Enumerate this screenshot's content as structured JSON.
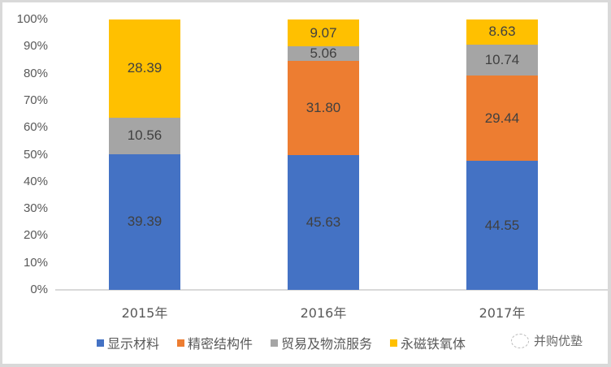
{
  "chart_data": {
    "type": "bar",
    "stacked": true,
    "normalized_percent": true,
    "title": "",
    "xlabel": "",
    "ylabel": "",
    "categories": [
      "2015年",
      "2016年",
      "2017年"
    ],
    "series": [
      {
        "name": "显示材料",
        "color": "#4472c4",
        "values": [
          39.39,
          45.63,
          44.55
        ],
        "labels": [
          "39.39",
          "45.63",
          "44.55"
        ]
      },
      {
        "name": "精密结构件",
        "color": "#ed7d31",
        "values": [
          0,
          31.8,
          29.44
        ],
        "labels": [
          "",
          "31.80",
          "29.44"
        ]
      },
      {
        "name": "贸易及物流服务",
        "color": "#a5a5a5",
        "values": [
          10.56,
          5.06,
          10.74
        ],
        "labels": [
          "10.56",
          "5.06",
          "10.74"
        ]
      },
      {
        "name": "永磁铁氧体",
        "color": "#ffc000",
        "values": [
          28.39,
          9.07,
          8.63
        ],
        "labels": [
          "28.39",
          "9.07",
          "8.63"
        ]
      }
    ],
    "yticks": [
      "0%",
      "10%",
      "20%",
      "30%",
      "40%",
      "50%",
      "60%",
      "70%",
      "80%",
      "90%",
      "100%"
    ],
    "ylim": [
      0,
      100
    ],
    "grid": false,
    "legend_position": "bottom"
  },
  "watermark": {
    "text": "并购优塾"
  }
}
